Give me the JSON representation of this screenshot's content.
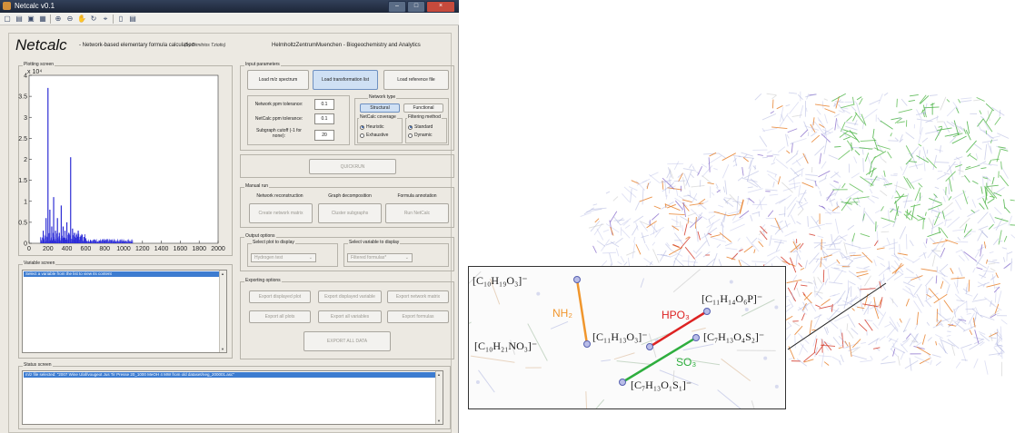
{
  "window": {
    "title": "Netcalc v0.1",
    "controls": [
      "minimize",
      "maximize",
      "close"
    ],
    "toolbar_icons": [
      "new-icon",
      "open-icon",
      "save-icon",
      "print-icon",
      "zoom-in-icon",
      "zoom-out-icon",
      "pan-icon",
      "rotate-icon",
      "data-cursor-icon",
      "colorbar-icon",
      "legend-icon"
    ]
  },
  "header": {
    "app_name": "Netcalc",
    "subtitle": "- Network-based elementary formula calculation",
    "author": "(by Dimitrios Tziotis)",
    "institution": "HelmholtzZentrumMuenchen - Biogeochemistry and Analytics"
  },
  "plotting_screen": {
    "label": "Plotting screen",
    "exponent": "x 10⁴",
    "y_ticks": [
      "4",
      "3.5",
      "3",
      "2.5",
      "2",
      "1.5",
      "1",
      "0.5",
      "0"
    ],
    "x_ticks": [
      "0",
      "200",
      "400",
      "600",
      "800",
      "1000",
      "1200",
      "1400",
      "1600",
      "1800",
      "2000"
    ]
  },
  "chart_data": {
    "type": "bar",
    "title": "",
    "xlabel": "",
    "ylabel": "",
    "xlim": [
      0,
      2000
    ],
    "ylim": [
      0,
      40000
    ],
    "x": [
      150,
      180,
      200,
      220,
      240,
      260,
      280,
      300,
      320,
      340,
      360,
      380,
      400,
      420,
      440,
      460,
      480,
      500,
      520,
      540,
      560,
      580,
      600,
      650,
      700,
      750,
      800,
      900,
      1000
    ],
    "values": [
      3000,
      6000,
      37000,
      8000,
      4000,
      11000,
      3000,
      6000,
      2500,
      9000,
      4000,
      3000,
      5000,
      2500,
      20500,
      3500,
      2500,
      2000,
      3000,
      1500,
      2000,
      1500,
      1200,
      800,
      800,
      600,
      500,
      300,
      200
    ]
  },
  "variable_screen": {
    "label": "Variable screen",
    "selected_item": "Select a variable from the list to view its content"
  },
  "status_screen": {
    "label": "Status screen",
    "line": "m/z file selected: \"2007 Wine Ulaf/vougeot Jus Tir Presse 20_1000 MeOH 4 MW from old dataset/neg_200001.asc\""
  },
  "input_parameters": {
    "label": "Input parameters",
    "buttons": {
      "load_mz": "Load m/z spectrum",
      "load_transformation": "Load transformation list",
      "load_reference": "Load reference file"
    },
    "network_ppm_label": "Network ppm tolerance:",
    "network_ppm_value": "0.1",
    "netcalc_ppm_label": "NetCalc ppm tolerance:",
    "netcalc_ppm_value": "0.1",
    "subgraph_label": "Subgraph cutoff (-1 for none):",
    "subgraph_value": "20",
    "network_type_label": "Network type",
    "structural": "Structural",
    "functional": "Functional",
    "coverage_label": "NetCalc coverage",
    "heuristic": "Heuristic",
    "exhaustive": "Exhaustive",
    "filtering_label": "Filtering method",
    "standard": "Standard",
    "dynamic": "Dynamic"
  },
  "quickrun_label": "QUICKRUN",
  "manual_run": {
    "label": "Manual run",
    "col1_title": "Network reconstruction",
    "col2_title": "Graph decomposition",
    "col3_title": "Formula annotation",
    "btn1": "Create network matrix",
    "btn2": "Cluster subgraphs",
    "btn3": "Run NetCalc"
  },
  "output_options": {
    "label": "Output options",
    "plot_group": "Select plot to display",
    "plot_value": "Hydrogen test",
    "variable_group": "Select variable to display",
    "variable_value": "Filtered formulas*"
  },
  "exporting_options": {
    "label": "Exporting options",
    "b1": "Export displayed plot",
    "b2": "Export displayed variable",
    "b3": "Export network matrix",
    "b4": "Export all plots",
    "b5": "Export all variables",
    "b6": "Export formulas",
    "all": "EXPORT ALL DATA"
  },
  "inset": {
    "colors": {
      "nh2": "#f0962d",
      "hpo3": "#dd2222",
      "so3": "#2eae3e"
    },
    "nodes": {
      "n1": {
        "formula": "[C₁₀H₁₉O₃]⁻"
      },
      "n2": {
        "formula": "[C₁₀H₂₁NO₃]⁻"
      },
      "n3": {
        "formula": "[C₁₁H₁₃O₃]⁻"
      },
      "n4": {
        "formula": "[C₁₁H₁₄O₆P]⁻"
      },
      "n5": {
        "formula": "[C₇H₁₃O₄S₂]⁻"
      },
      "n6": {
        "formula": "[C₇H₁₃O₁S₁]⁻"
      }
    },
    "edges": {
      "nh2": "NH₂",
      "hpo3": "HPO₃",
      "so3": "SO₃"
    }
  }
}
